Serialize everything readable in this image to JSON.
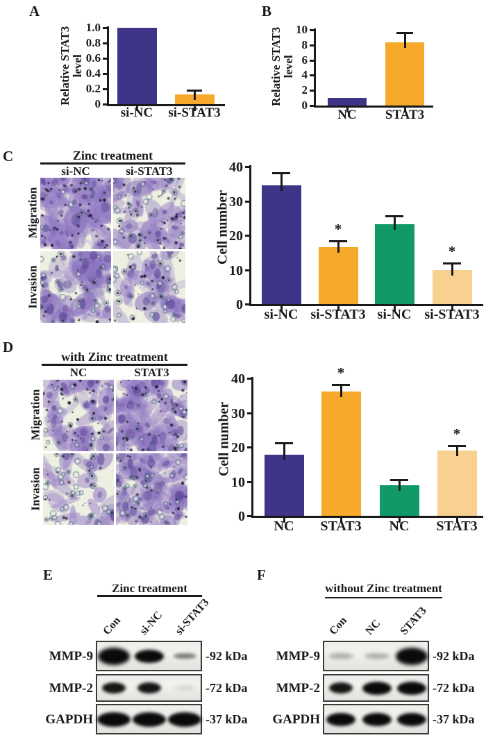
{
  "colors": {
    "blue": "#3E3589",
    "orange": "#F6A92B",
    "green": "#119A68",
    "tan": "#F8D191",
    "axis": "#1A1A1A",
    "micro_bg": "#EEF0E2",
    "blot_bg": "#ECEAE6"
  },
  "figure": {
    "panels": {
      "A": {
        "label": "A"
      },
      "B": {
        "label": "B"
      },
      "C": {
        "label": "C",
        "micro": {
          "header": "Zinc treatment",
          "columns": [
            "si-NC",
            "si-STAT3"
          ],
          "rows": [
            "Migration",
            "Invasion"
          ]
        }
      },
      "D": {
        "label": "D",
        "micro": {
          "header": "with Zinc treatment",
          "columns": [
            "NC",
            "STAT3"
          ],
          "rows": [
            "Migration",
            "Invasion"
          ]
        }
      },
      "E": {
        "label": "E",
        "blot": {
          "header": "Zinc treatment",
          "lanes": [
            "Con",
            "si-NC",
            "si-STAT3"
          ],
          "rows": [
            {
              "label": "MMP-9",
              "kda": "-92 kDa",
              "bands": [
                "strong-large",
                "strong",
                "weak"
              ]
            },
            {
              "label": "MMP-2",
              "kda": "-72 kDa",
              "bands": [
                "medium",
                "medium",
                "trace"
              ]
            },
            {
              "label": "GAPDH",
              "kda": "-37 kDa",
              "bands": [
                "strong-wide",
                "strong-wide",
                "strong-wide"
              ]
            }
          ]
        }
      },
      "F": {
        "label": "F",
        "blot": {
          "header": "without Zinc treatment",
          "lanes": [
            "Con",
            "NC",
            "STAT3"
          ],
          "rows": [
            {
              "label": "MMP-9",
              "kda": "-92 kDa",
              "bands": [
                "faint",
                "faint",
                "strong-large"
              ]
            },
            {
              "label": "MMP-2",
              "kda": "-72 kDa",
              "bands": [
                "medium",
                "strong",
                "strong"
              ]
            },
            {
              "label": "GAPDH",
              "kda": "-37 kDa",
              "bands": [
                "strong",
                "strong",
                "strong"
              ]
            }
          ]
        }
      }
    }
  },
  "chart_data": [
    {
      "panel": "A",
      "type": "bar",
      "categories": [
        "si-NC",
        "si-STAT3"
      ],
      "values": [
        1.0,
        0.13
      ],
      "errors": [
        0,
        0.055
      ],
      "significance": [
        "",
        ""
      ],
      "bar_colors": [
        "blue",
        "orange"
      ],
      "title": "",
      "xlabel": "",
      "ylabel": "Relative STAT3 level",
      "ylabel_lines": [
        "Relative STAT3",
        "level"
      ],
      "ylim": [
        0,
        1.0
      ],
      "yticks": [
        0,
        0.2,
        0.4,
        0.6,
        0.8,
        1.0
      ],
      "ytick_labels": [
        "0",
        "0.2",
        "0.4",
        "0.6",
        "0.8",
        "1.0"
      ],
      "grid": false,
      "legend": "none"
    },
    {
      "panel": "B",
      "type": "bar",
      "categories": [
        "NC",
        "STAT3"
      ],
      "values": [
        1.0,
        8.35
      ],
      "errors": [
        0,
        1.25
      ],
      "significance": [
        "",
        ""
      ],
      "bar_colors": [
        "blue",
        "orange"
      ],
      "title": "",
      "xlabel": "",
      "ylabel": "Relative STAT3 level",
      "ylabel_lines": [
        "Relative STAT3",
        "level"
      ],
      "ylim": [
        0,
        10
      ],
      "yticks": [
        0,
        2,
        4,
        6,
        8,
        10
      ],
      "ytick_labels": [
        "0",
        "2",
        "4",
        "6",
        "8",
        "10"
      ],
      "grid": false,
      "legend": "none"
    },
    {
      "panel": "C",
      "type": "bar",
      "categories": [
        "si-NC",
        "si-STAT3",
        "si-NC",
        "si-STAT3"
      ],
      "values": [
        34.5,
        16.5,
        23.2,
        9.9
      ],
      "errors": [
        3.7,
        1.8,
        2.4,
        2.0
      ],
      "significance": [
        "",
        "*",
        "",
        "*"
      ],
      "bar_colors": [
        "blue",
        "orange",
        "green",
        "tan"
      ],
      "title": "",
      "xlabel": "",
      "ylabel": "Cell number",
      "ylabel_lines": [
        "Cell number"
      ],
      "ylim": [
        0,
        40
      ],
      "yticks": [
        0,
        10,
        20,
        30,
        40
      ],
      "ytick_labels": [
        "0",
        "10",
        "20",
        "30",
        "40"
      ],
      "grid": false,
      "legend": "none"
    },
    {
      "panel": "D",
      "type": "bar",
      "categories": [
        "NC",
        "STAT3",
        "NC",
        "STAT3"
      ],
      "values": [
        17.8,
        36.2,
        8.8,
        18.9
      ],
      "errors": [
        3.4,
        2.0,
        1.8,
        1.6
      ],
      "significance": [
        "",
        "*",
        "",
        "*"
      ],
      "bar_colors": [
        "blue",
        "orange",
        "green",
        "tan"
      ],
      "title": "",
      "xlabel": "",
      "ylabel": "Cell number",
      "ylabel_lines": [
        "Cell number"
      ],
      "ylim": [
        0,
        40
      ],
      "yticks": [
        0,
        10,
        20,
        30,
        40
      ],
      "ytick_labels": [
        "0",
        "10",
        "20",
        "30",
        "40"
      ],
      "grid": false,
      "legend": "none"
    }
  ]
}
